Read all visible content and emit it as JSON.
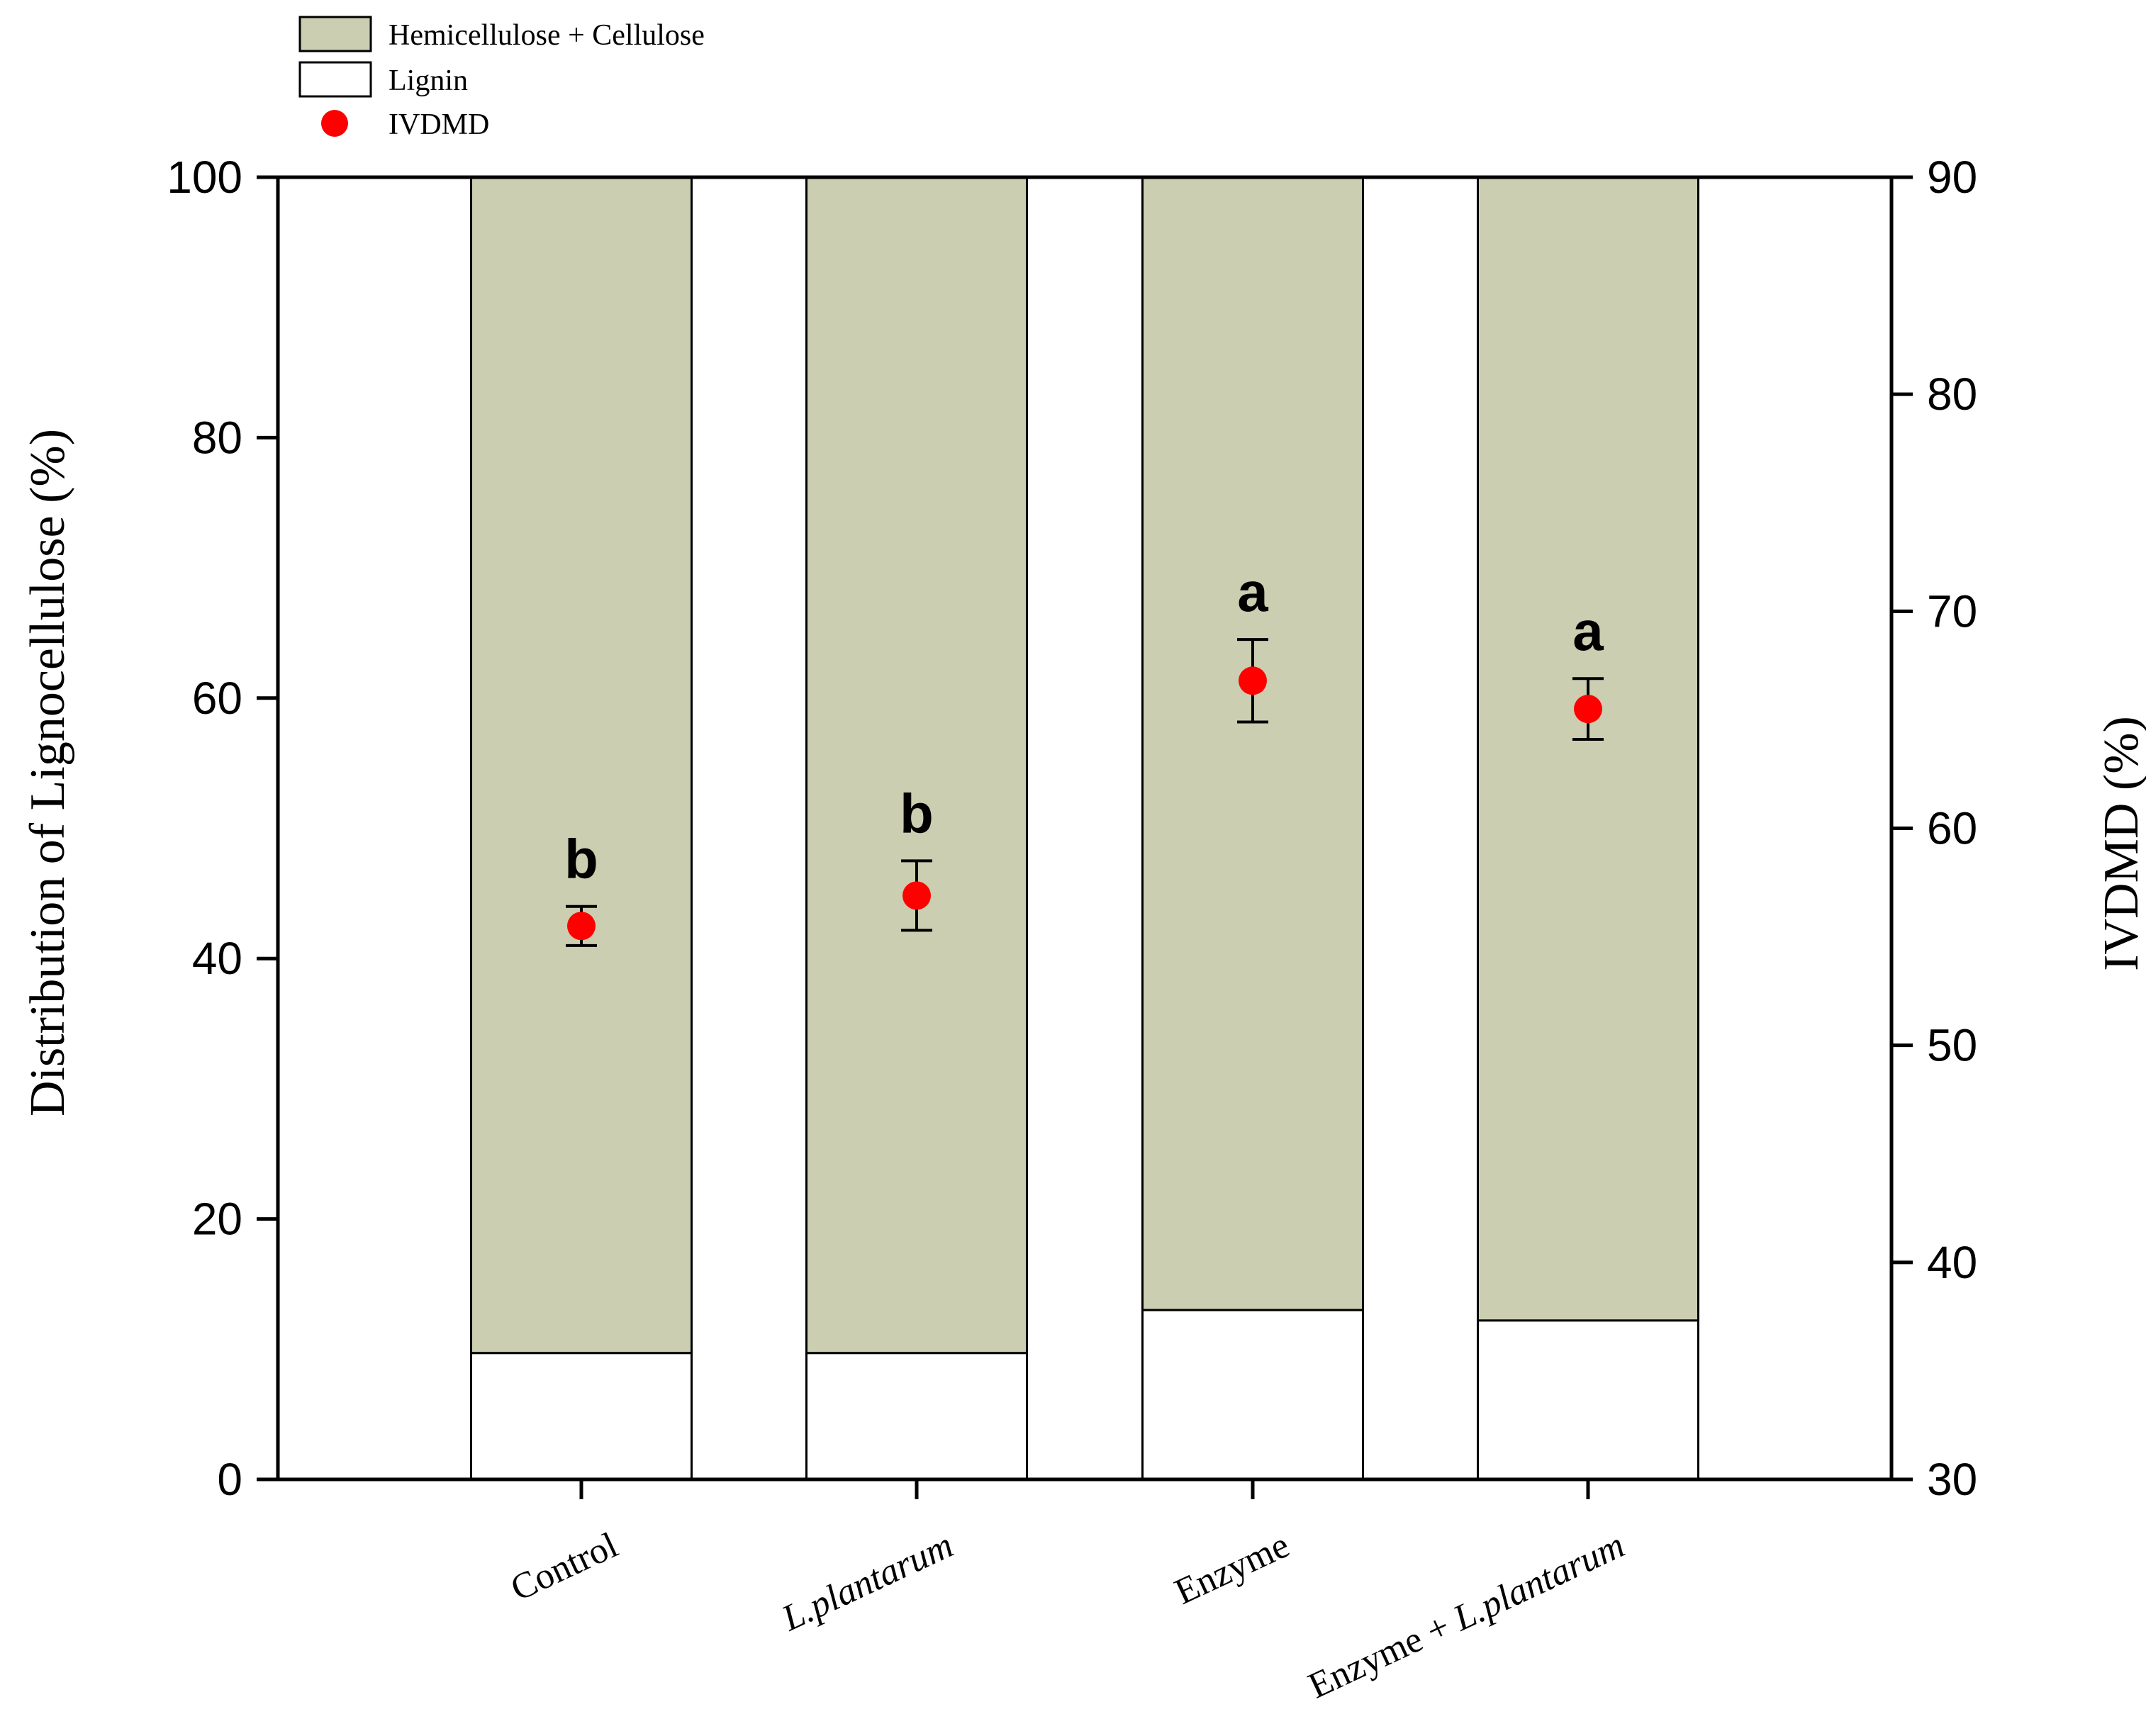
{
  "chart_data": {
    "type": "bar",
    "stacked": true,
    "categories": [
      "Control",
      "L.plantarum",
      "Enzyme",
      "Enzyme + L.plantarum"
    ],
    "category_display": [
      {
        "parts": [
          {
            "text": "Control",
            "italic": false
          }
        ]
      },
      {
        "parts": [
          {
            "text": "L.plantarum",
            "italic": true
          }
        ]
      },
      {
        "parts": [
          {
            "text": "Enzyme",
            "italic": false
          }
        ]
      },
      {
        "parts": [
          {
            "text": "Enzyme + ",
            "italic": false
          },
          {
            "text": "L.plantarum",
            "italic": true
          }
        ]
      }
    ],
    "series": [
      {
        "name": "Lignin",
        "axis": "left",
        "values": [
          9.7,
          9.7,
          13.0,
          12.2
        ],
        "color": "#ffffff"
      },
      {
        "name": "Hemicellulose + Cellulose",
        "axis": "left",
        "values": [
          90.3,
          90.3,
          87.0,
          87.8
        ],
        "color": "#ccceb1"
      },
      {
        "name": "IVDMD",
        "axis": "right",
        "type": "scatter",
        "values": [
          55.5,
          56.9,
          66.8,
          65.5
        ],
        "error": [
          0.9,
          1.6,
          1.9,
          1.4
        ],
        "color": "#ff0000"
      }
    ],
    "significance_letters": [
      "b",
      "b",
      "a",
      "a"
    ],
    "ylabel": "Distribution of Lignocellulose (%)",
    "ylim": [
      0,
      100
    ],
    "yticks": [
      0,
      20,
      40,
      60,
      80,
      100
    ],
    "y2label": "IVDMD (%)",
    "y2lim": [
      30,
      90
    ],
    "y2ticks": [
      30,
      40,
      50,
      60,
      70,
      80,
      90
    ],
    "legend": {
      "position": "top-left",
      "entries": [
        "Hemicellulose + Cellulose",
        "Lignin",
        "IVDMD"
      ]
    },
    "grid": false
  }
}
